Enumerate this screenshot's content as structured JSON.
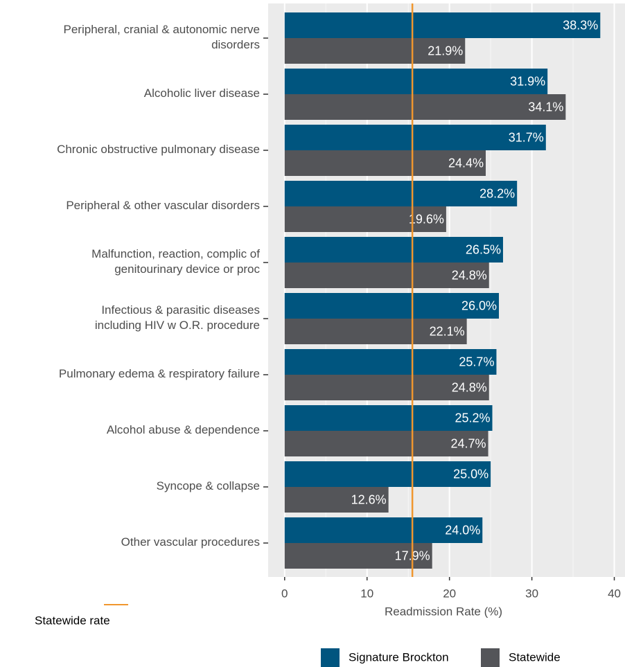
{
  "chart_data": {
    "type": "bar",
    "orientation": "horizontal",
    "categories": [
      "Peripheral, cranial & autonomic nerve\ndisorders",
      "Alcoholic liver disease",
      "Chronic obstructive pulmonary disease",
      "Peripheral & other vascular disorders",
      "Malfunction, reaction, complic of\ngenitourinary device or proc",
      "Infectious & parasitic diseases\nincluding HIV w O.R. procedure",
      "Pulmonary edema & respiratory failure",
      "Alcohol abuse & dependence",
      "Syncope & collapse",
      "Other vascular procedures"
    ],
    "series": [
      {
        "name": "Signature Brockton",
        "color": "#00557f",
        "values": [
          38.3,
          31.9,
          31.7,
          28.2,
          26.5,
          26.0,
          25.7,
          25.2,
          25.0,
          24.0
        ],
        "value_labels": [
          "38.3%",
          "31.9%",
          "31.7%",
          "28.2%",
          "26.5%",
          "26.0%",
          "25.7%",
          "25.2%",
          "25.0%",
          "24.0%"
        ]
      },
      {
        "name": "Statewide",
        "color": "#545559",
        "values": [
          21.9,
          34.1,
          24.4,
          19.6,
          24.8,
          22.1,
          24.8,
          24.7,
          12.6,
          17.9
        ],
        "value_labels": [
          "21.9%",
          "34.1%",
          "24.4%",
          "19.6%",
          "24.8%",
          "22.1%",
          "24.8%",
          "24.7%",
          "12.6%",
          "17.9%"
        ]
      }
    ],
    "reference_line": {
      "name": "Statewide rate",
      "value": 15.5,
      "color": "#f0962e"
    },
    "xlabel": "Readmission Rate (%)",
    "xlim": [
      -2,
      41.3
    ],
    "xticks": [
      0,
      10,
      20,
      30,
      40
    ],
    "minor_xticks": [
      5,
      15,
      25,
      35
    ],
    "grid": true
  }
}
